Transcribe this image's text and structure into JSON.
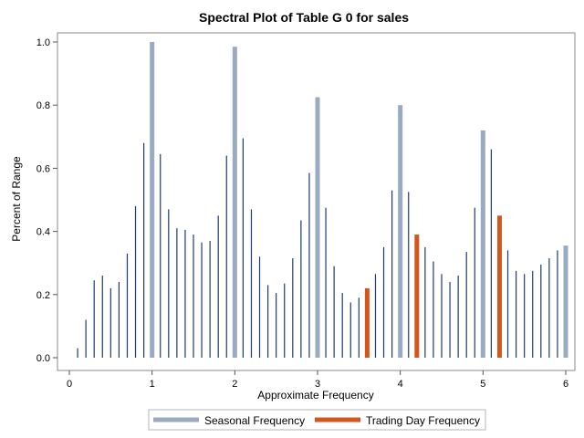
{
  "chart_data": {
    "type": "bar",
    "title": "Spectral Plot of Table G 0 for sales",
    "xlabel": "Approximate Frequency",
    "ylabel": "Percent of Range",
    "xlim": [
      -0.1,
      6.05
    ],
    "ylim": [
      0,
      1.0
    ],
    "xticks": [
      "0",
      "1",
      "2",
      "3",
      "4",
      "5",
      "6"
    ],
    "yticks": [
      "0.0",
      "0.2",
      "0.4",
      "0.6",
      "0.8",
      "1.0"
    ],
    "grid": false,
    "legend_position": "bottom",
    "series": [
      {
        "name": "",
        "style": "thin",
        "color": "#1f3c73",
        "x": [
          0.1,
          0.2,
          0.3,
          0.4,
          0.5,
          0.6,
          0.7,
          0.8,
          0.9,
          1.1,
          1.2,
          1.3,
          1.4,
          1.5,
          1.6,
          1.7,
          1.8,
          1.9,
          2.1,
          2.2,
          2.3,
          2.4,
          2.5,
          2.6,
          2.7,
          2.8,
          2.9,
          3.1,
          3.2,
          3.3,
          3.4,
          3.5,
          3.7,
          3.8,
          3.9,
          4.1,
          4.3,
          4.4,
          4.5,
          4.6,
          4.7,
          4.8,
          4.9,
          5.1,
          5.3,
          5.4,
          5.5,
          5.6,
          5.7,
          5.8,
          5.9
        ],
        "values": [
          0.03,
          0.12,
          0.245,
          0.26,
          0.22,
          0.24,
          0.33,
          0.48,
          0.68,
          0.645,
          0.47,
          0.41,
          0.405,
          0.39,
          0.365,
          0.37,
          0.45,
          0.64,
          0.695,
          0.47,
          0.32,
          0.23,
          0.205,
          0.235,
          0.315,
          0.435,
          0.585,
          0.475,
          0.29,
          0.205,
          0.175,
          0.19,
          0.265,
          0.35,
          0.53,
          0.525,
          0.35,
          0.305,
          0.265,
          0.24,
          0.26,
          0.335,
          0.475,
          0.66,
          0.34,
          0.275,
          0.265,
          0.275,
          0.295,
          0.315,
          0.34
        ]
      },
      {
        "name": "Seasonal Frequency",
        "style": "wide",
        "color": "#9aaac0",
        "x": [
          1,
          2,
          3,
          4,
          5,
          6
        ],
        "values": [
          1.0,
          0.985,
          0.825,
          0.8,
          0.72,
          0.355
        ]
      },
      {
        "name": "Trading Day Frequency",
        "style": "wide",
        "color": "#d4561f",
        "x": [
          3.6,
          4.2,
          5.2
        ],
        "values": [
          0.22,
          0.39,
          0.45
        ]
      }
    ]
  }
}
